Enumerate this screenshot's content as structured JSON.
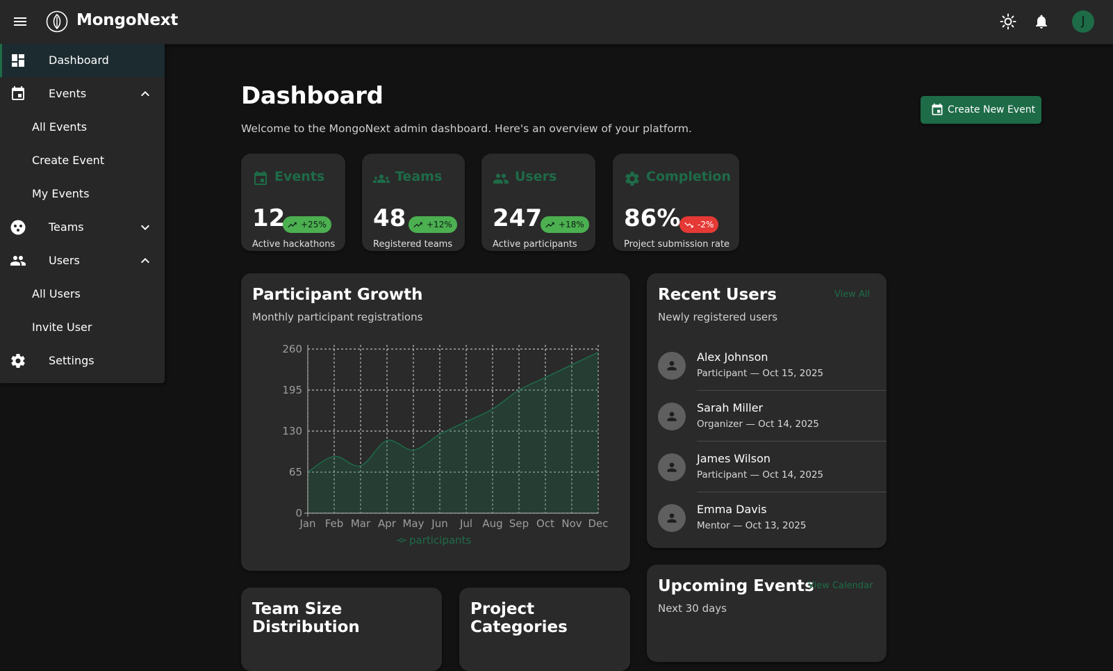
{
  "app": {
    "name": "MongoNext",
    "user_initial": "J"
  },
  "colors": {
    "accent": "#1e6b48",
    "positive": "#4caf50",
    "negative": "#e53935",
    "background": "#121212",
    "surface": "#2a2a2a"
  },
  "sidebar": {
    "items": [
      {
        "label": "Dashboard",
        "icon": "dashboard-icon",
        "active": true
      },
      {
        "label": "Events",
        "icon": "calendar-icon",
        "expanded": true
      },
      {
        "label": "All Events",
        "sub": true
      },
      {
        "label": "Create Event",
        "sub": true
      },
      {
        "label": "My Events",
        "sub": true
      },
      {
        "label": "Teams",
        "icon": "teams-icon",
        "expanded": false
      },
      {
        "label": "Users",
        "icon": "users-icon",
        "expanded": true
      },
      {
        "label": "All Users",
        "sub": true
      },
      {
        "label": "Invite User",
        "sub": true
      },
      {
        "label": "Settings",
        "icon": "gear-icon"
      }
    ]
  },
  "header": {
    "title": "Dashboard",
    "subtitle": "Welcome to the MongoNext admin dashboard. Here's an overview of your platform.",
    "create_button": "Create New Event"
  },
  "stats": [
    {
      "title": "Events",
      "value": "12",
      "change": "+25%",
      "trend": "up",
      "desc": "Active hackathons"
    },
    {
      "title": "Teams",
      "value": "48",
      "change": "+12%",
      "trend": "up",
      "desc": "Registered teams"
    },
    {
      "title": "Users",
      "value": "247",
      "change": "+18%",
      "trend": "up",
      "desc": "Active participants"
    },
    {
      "title": "Completion",
      "value": "86%",
      "change": "-2%",
      "trend": "down",
      "desc": "Project submission rate"
    }
  ],
  "growth": {
    "title": "Participant Growth",
    "subtitle": "Monthly participant registrations"
  },
  "chart_data": {
    "type": "area",
    "categories": [
      "Jan",
      "Feb",
      "Mar",
      "Apr",
      "May",
      "Jun",
      "Jul",
      "Aug",
      "Sep",
      "Oct",
      "Nov",
      "Dec"
    ],
    "series": [
      {
        "name": "participants",
        "values": [
          65,
          90,
          75,
          115,
          100,
          125,
          145,
          165,
          195,
          215,
          235,
          255
        ]
      }
    ],
    "yticks": [
      "0",
      "65",
      "130",
      "195",
      "260"
    ],
    "ylim": [
      0,
      260
    ],
    "grid": true,
    "legend": "bottom",
    "color": "#1e6b48"
  },
  "recent_users": {
    "title": "Recent Users",
    "subtitle": "Newly registered users",
    "link": "View All",
    "users": [
      {
        "name": "Alex Johnson",
        "role": "Participant",
        "date": "Oct 15, 2025"
      },
      {
        "name": "Sarah Miller",
        "role": "Organizer",
        "date": "Oct 14, 2025"
      },
      {
        "name": "James Wilson",
        "role": "Participant",
        "date": "Oct 14, 2025"
      },
      {
        "name": "Emma Davis",
        "role": "Mentor",
        "date": "Oct 13, 2025"
      }
    ]
  },
  "upcoming": {
    "title": "Upcoming Events",
    "subtitle": "Next 30 days",
    "link": "View Calendar"
  },
  "team_size": {
    "title": "Team Size Distribution"
  },
  "categories": {
    "title": "Project Categories"
  }
}
